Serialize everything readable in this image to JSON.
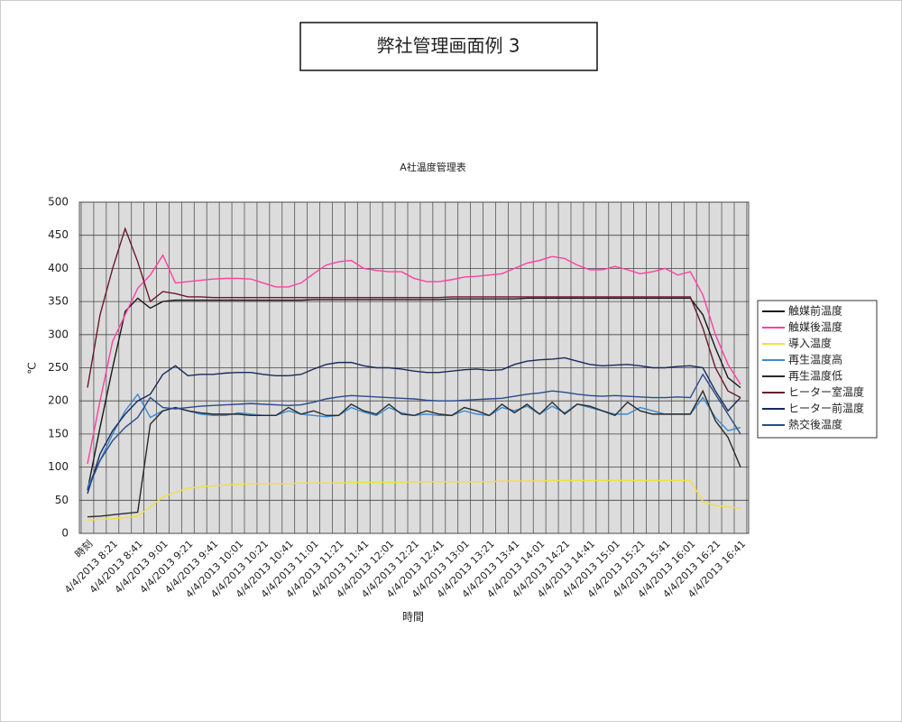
{
  "header": {
    "title": "弊社管理画面例 3"
  },
  "chart_data": {
    "type": "line",
    "title": "A社温度管理表",
    "x_label": "時間",
    "y_label": "℃",
    "categories": [
      "時刻",
      null,
      "4/4/2013 8:21",
      null,
      "4/4/2013 8:41",
      null,
      "4/4/2013 9:01",
      null,
      "4/4/2013 9:21",
      null,
      "4/4/2013 9:41",
      null,
      "4/4/2013 10:01",
      null,
      "4/4/2013 10:21",
      null,
      "4/4/2013 10:41",
      null,
      "4/4/2013 11:01",
      null,
      "4/4/2013 11:21",
      null,
      "4/4/2013 11:41",
      null,
      "4/4/2013 12:01",
      null,
      "4/4/2013 12:21",
      null,
      "4/4/2013 12:41",
      null,
      "4/4/2013 13:01",
      null,
      "4/4/2013 13:21",
      null,
      "4/4/2013 13:41",
      null,
      "4/4/2013 14:01",
      null,
      "4/4/2013 14:21",
      null,
      "4/4/2013 14:41",
      null,
      "4/4/2013 15:01",
      null,
      "4/4/2013 15:21",
      null,
      "4/4/2013 15:41",
      null,
      "4/4/2013 16:01",
      null,
      "4/4/2013 16:21",
      null,
      "4/4/2013 16:41"
    ],
    "ylim": [
      0,
      500
    ],
    "yticks": [
      0,
      50,
      100,
      150,
      200,
      250,
      300,
      350,
      400,
      450,
      500
    ],
    "grid": true,
    "legend": "right",
    "series": [
      {
        "name": "触媒前温度",
        "color": "#1a1a1a",
        "values": [
          65,
          160,
          250,
          335,
          355,
          340,
          350,
          352,
          352,
          352,
          352,
          352,
          352,
          352,
          352,
          352,
          352,
          352,
          353,
          353,
          353,
          353,
          353,
          353,
          353,
          353,
          353,
          353,
          353,
          354,
          354,
          354,
          354,
          354,
          354,
          355,
          355,
          355,
          355,
          355,
          355,
          355,
          355,
          355,
          355,
          355,
          355,
          355,
          355,
          330,
          280,
          235,
          220
        ]
      },
      {
        "name": "触媒後温度",
        "color": "#ff3fa0",
        "values": [
          105,
          200,
          290,
          330,
          370,
          390,
          420,
          378,
          380,
          382,
          384,
          385,
          385,
          384,
          378,
          372,
          372,
          378,
          392,
          405,
          410,
          412,
          400,
          397,
          395,
          395,
          385,
          380,
          380,
          383,
          387,
          388,
          390,
          392,
          400,
          408,
          412,
          418,
          415,
          405,
          398,
          398,
          403,
          398,
          392,
          395,
          400,
          390,
          395,
          360,
          300,
          255,
          225
        ]
      },
      {
        "name": "導入温度",
        "color": "#f0e040",
        "values": [
          20,
          21,
          22,
          24,
          26,
          40,
          55,
          62,
          68,
          70,
          72,
          73,
          74,
          75,
          75,
          75,
          75,
          76,
          76,
          76,
          76,
          77,
          77,
          77,
          77,
          77,
          78,
          78,
          78,
          78,
          78,
          78,
          78,
          79,
          79,
          79,
          79,
          80,
          80,
          80,
          80,
          80,
          80,
          80,
          80,
          80,
          80,
          80,
          80,
          48,
          42,
          40,
          38
        ]
      },
      {
        "name": "再生温度高",
        "color": "#3a8ad0",
        "values": [
          70,
          110,
          150,
          185,
          210,
          175,
          185,
          190,
          185,
          180,
          178,
          178,
          182,
          180,
          178,
          178,
          185,
          180,
          178,
          176,
          178,
          190,
          183,
          178,
          190,
          182,
          178,
          180,
          178,
          178,
          185,
          180,
          178,
          190,
          185,
          192,
          180,
          192,
          182,
          195,
          190,
          185,
          180,
          180,
          190,
          185,
          180,
          180,
          180,
          205,
          175,
          155,
          160
        ]
      },
      {
        "name": "再生温度低",
        "color": "#2a2a2a",
        "values": [
          25,
          26,
          28,
          30,
          32,
          165,
          185,
          190,
          185,
          182,
          180,
          180,
          180,
          178,
          178,
          178,
          190,
          180,
          185,
          178,
          178,
          195,
          185,
          180,
          195,
          180,
          178,
          185,
          180,
          178,
          190,
          185,
          178,
          195,
          182,
          195,
          180,
          198,
          180,
          195,
          192,
          185,
          178,
          198,
          185,
          180,
          180,
          180,
          180,
          215,
          170,
          145,
          100
        ]
      },
      {
        "name": "ヒーター室温度",
        "color": "#6a1a2a",
        "values": [
          220,
          330,
          400,
          460,
          410,
          350,
          365,
          362,
          357,
          357,
          356,
          356,
          356,
          356,
          356,
          356,
          356,
          356,
          356,
          356,
          356,
          356,
          356,
          356,
          356,
          356,
          356,
          356,
          356,
          357,
          357,
          357,
          357,
          357,
          357,
          357,
          357,
          357,
          357,
          357,
          357,
          357,
          357,
          357,
          357,
          357,
          357,
          357,
          357,
          310,
          250,
          215,
          205
        ]
      },
      {
        "name": "ヒーター前温度",
        "color": "#1a2a5a",
        "values": [
          60,
          120,
          155,
          180,
          200,
          210,
          240,
          253,
          238,
          240,
          240,
          242,
          243,
          243,
          240,
          238,
          238,
          240,
          248,
          255,
          258,
          258,
          253,
          250,
          250,
          248,
          245,
          243,
          243,
          245,
          247,
          248,
          246,
          247,
          255,
          260,
          262,
          263,
          265,
          260,
          255,
          253,
          254,
          255,
          253,
          250,
          250,
          252,
          253,
          250,
          215,
          185,
          205
        ]
      },
      {
        "name": "熱交後温度",
        "color": "#2a4a8a",
        "values": [
          65,
          110,
          140,
          160,
          175,
          205,
          190,
          188,
          190,
          192,
          193,
          194,
          195,
          196,
          195,
          194,
          193,
          194,
          198,
          203,
          206,
          208,
          207,
          206,
          205,
          204,
          203,
          201,
          200,
          200,
          201,
          202,
          203,
          204,
          207,
          210,
          212,
          215,
          213,
          210,
          208,
          207,
          208,
          207,
          206,
          205,
          205,
          206,
          205,
          240,
          210,
          180,
          150
        ]
      }
    ]
  }
}
